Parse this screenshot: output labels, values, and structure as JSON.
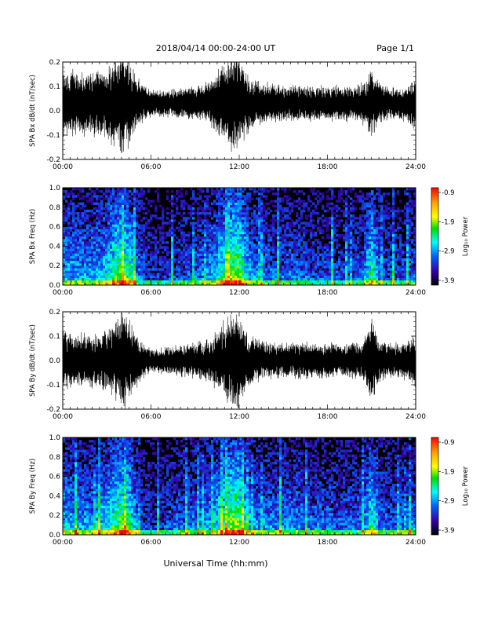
{
  "header": {
    "title": "2018/04/14   00:00-24:00 UT",
    "page": "Page 1/1"
  },
  "x_axis_title": "Universal Time (hh:mm)",
  "colorbar": {
    "label": "Log₁₀ Power",
    "ticks": [
      "-0.9",
      "-1.9",
      "-2.9",
      "-3.9"
    ],
    "colors": [
      "#ff0000",
      "#ffa500",
      "#ffff00",
      "#00dd00",
      "#00ffff",
      "#0066ff",
      "#3300aa",
      "#000000"
    ]
  },
  "chart_data": [
    {
      "type": "line",
      "name": "bx-waveform",
      "ylabel": "SPA Bx dB/dt (nT/sec)",
      "xlim": [
        "00:00",
        "24:00"
      ],
      "ylim": [
        -0.2,
        0.2
      ],
      "x_ticks": [
        "00:00",
        "06:00",
        "12:00",
        "18:00",
        "24:00"
      ],
      "y_ticks": [
        "-0.2",
        "-0.1",
        "0.0",
        "0.1",
        "0.2"
      ],
      "baseline": 0.03,
      "envelope": {
        "hours": [
          0,
          1,
          2,
          3,
          3.5,
          4,
          4.5,
          5,
          5.5,
          6,
          7,
          8,
          9,
          10,
          10.5,
          11,
          11.5,
          12,
          12.5,
          13,
          14,
          15,
          16,
          17,
          18,
          19,
          20,
          20.5,
          21,
          21.5,
          22,
          23,
          24
        ],
        "amplitude": [
          0.16,
          0.14,
          0.14,
          0.16,
          0.2,
          0.22,
          0.2,
          0.12,
          0.08,
          0.06,
          0.06,
          0.07,
          0.08,
          0.1,
          0.14,
          0.18,
          0.22,
          0.22,
          0.14,
          0.1,
          0.09,
          0.08,
          0.08,
          0.08,
          0.08,
          0.08,
          0.08,
          0.1,
          0.15,
          0.1,
          0.08,
          0.07,
          0.12
        ]
      }
    },
    {
      "type": "heatmap",
      "name": "bx-spectrogram",
      "ylabel": "SPA Bx Freq (Hz)",
      "xlim": [
        "00:00",
        "24:00"
      ],
      "ylim": [
        0.0,
        1.0
      ],
      "x_ticks": [
        "00:00",
        "06:00",
        "12:00",
        "18:00",
        "24:00"
      ],
      "y_ticks": [
        "0.0",
        "0.2",
        "0.4",
        "0.6",
        "0.8",
        "1.0"
      ],
      "value_range_log10": [
        -3.9,
        -0.9
      ],
      "activity": {
        "hours": [
          0,
          1,
          2,
          3,
          3.5,
          4,
          4.5,
          5,
          5.5,
          6,
          7,
          8,
          9,
          10,
          10.5,
          11,
          11.5,
          12,
          12.5,
          13,
          14,
          15,
          16,
          17,
          18,
          19,
          20,
          20.5,
          21,
          21.5,
          22,
          23,
          24
        ],
        "level": [
          0.5,
          0.45,
          0.45,
          0.55,
          0.7,
          0.8,
          0.7,
          0.45,
          0.3,
          0.25,
          0.25,
          0.3,
          0.35,
          0.45,
          0.55,
          0.7,
          0.85,
          0.85,
          0.55,
          0.4,
          0.35,
          0.35,
          0.35,
          0.3,
          0.3,
          0.3,
          0.3,
          0.4,
          0.7,
          0.4,
          0.3,
          0.3,
          0.35
        ]
      }
    },
    {
      "type": "line",
      "name": "by-waveform",
      "ylabel": "SPA By dB/dt (nT/sec)",
      "xlim": [
        "00:00",
        "24:00"
      ],
      "ylim": [
        -0.2,
        0.2
      ],
      "x_ticks": [
        "00:00",
        "06:00",
        "12:00",
        "18:00",
        "24:00"
      ],
      "y_ticks": [
        "-0.2",
        "-0.1",
        "0.0",
        "0.1",
        "0.2"
      ],
      "baseline": 0.0,
      "envelope": {
        "hours": [
          0,
          1,
          2,
          3,
          3.5,
          4,
          4.5,
          5,
          5.5,
          6,
          7,
          8,
          9,
          10,
          10.5,
          11,
          11.5,
          12,
          12.5,
          13,
          14,
          15,
          16,
          17,
          18,
          19,
          20,
          20.5,
          21,
          21.5,
          22,
          23,
          24
        ],
        "amplitude": [
          0.13,
          0.12,
          0.12,
          0.14,
          0.18,
          0.22,
          0.2,
          0.12,
          0.08,
          0.05,
          0.06,
          0.07,
          0.08,
          0.1,
          0.13,
          0.18,
          0.22,
          0.22,
          0.12,
          0.1,
          0.08,
          0.08,
          0.08,
          0.08,
          0.08,
          0.08,
          0.08,
          0.1,
          0.2,
          0.1,
          0.08,
          0.08,
          0.12
        ]
      }
    },
    {
      "type": "heatmap",
      "name": "by-spectrogram",
      "ylabel": "SPA By Freq (Hz)",
      "xlim": [
        "00:00",
        "24:00"
      ],
      "ylim": [
        0.0,
        1.0
      ],
      "x_ticks": [
        "00:00",
        "06:00",
        "12:00",
        "18:00",
        "24:00"
      ],
      "y_ticks": [
        "0.0",
        "0.2",
        "0.4",
        "0.6",
        "0.8",
        "1.0"
      ],
      "value_range_log10": [
        -3.9,
        -0.9
      ],
      "activity": {
        "hours": [
          0,
          1,
          2,
          3,
          3.5,
          4,
          4.5,
          5,
          5.5,
          6,
          7,
          8,
          9,
          10,
          10.5,
          11,
          11.5,
          12,
          12.5,
          13,
          14,
          15,
          16,
          17,
          18,
          19,
          20,
          20.5,
          21,
          21.5,
          22,
          23,
          24
        ],
        "level": [
          0.5,
          0.45,
          0.45,
          0.55,
          0.7,
          0.8,
          0.7,
          0.45,
          0.3,
          0.25,
          0.3,
          0.35,
          0.4,
          0.45,
          0.55,
          0.7,
          0.85,
          0.85,
          0.55,
          0.45,
          0.4,
          0.4,
          0.4,
          0.35,
          0.35,
          0.35,
          0.35,
          0.4,
          0.7,
          0.4,
          0.35,
          0.35,
          0.4
        ]
      }
    }
  ]
}
